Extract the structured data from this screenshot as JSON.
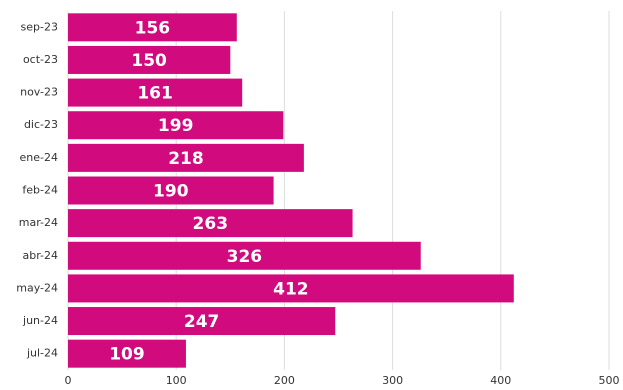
{
  "chart_data": {
    "type": "bar",
    "orientation": "horizontal",
    "categories": [
      "sep-23",
      "oct-23",
      "nov-23",
      "dic-23",
      "ene-24",
      "feb-24",
      "mar-24",
      "abr-24",
      "may-24",
      "jun-24",
      "jul-24"
    ],
    "values": [
      156,
      150,
      161,
      199,
      218,
      190,
      263,
      326,
      412,
      247,
      109
    ],
    "color": "#d10a7e",
    "xlim": [
      0,
      500
    ],
    "xticks": [
      0,
      100,
      200,
      300,
      400,
      500
    ],
    "grid": true
  }
}
